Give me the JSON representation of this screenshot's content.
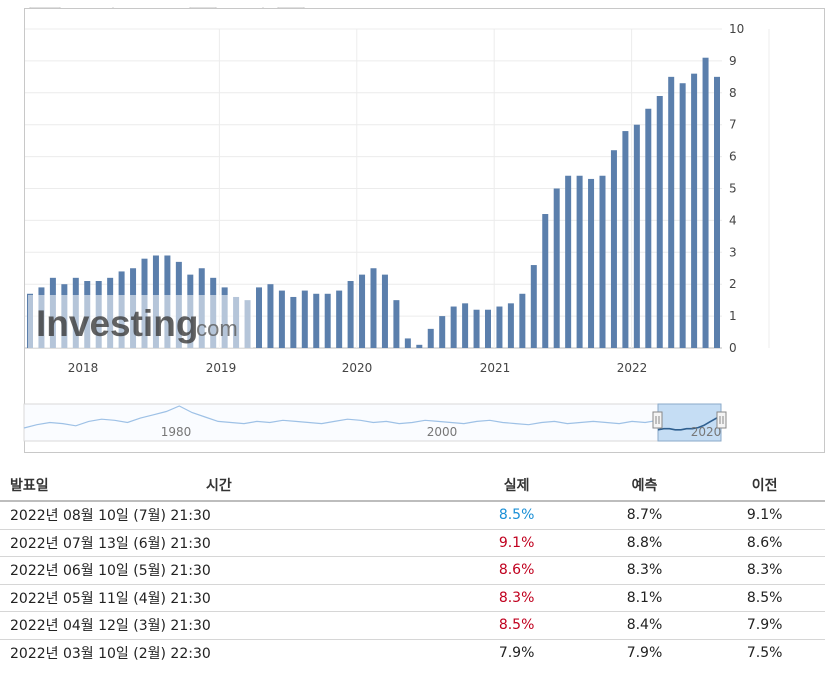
{
  "chart_data": {
    "type": "bar",
    "y_ticks": [
      "0",
      "1",
      "2",
      "3",
      "4",
      "5",
      "6",
      "7",
      "8",
      "9",
      "10"
    ],
    "ylim": [
      0,
      10
    ],
    "x_ticks": [
      {
        "label": "2018",
        "month": 12
      },
      {
        "label": "2019",
        "month": 24
      },
      {
        "label": "2020",
        "month": 36
      },
      {
        "label": "2021",
        "month": 48
      },
      {
        "label": "2022",
        "month": 60
      }
    ],
    "start_label": "2017-01",
    "values": [
      1.7,
      1.9,
      2.2,
      2.0,
      2.2,
      2.1,
      2.1,
      2.2,
      2.4,
      2.5,
      2.8,
      2.9,
      2.9,
      2.7,
      2.3,
      2.5,
      2.2,
      1.9,
      1.6,
      1.5,
      1.9,
      2.0,
      1.8,
      1.6,
      1.8,
      1.7,
      1.7,
      1.8,
      2.1,
      2.3,
      2.5,
      2.3,
      1.5,
      0.3,
      0.1,
      0.6,
      1.0,
      1.3,
      1.4,
      1.2,
      1.2,
      1.3,
      1.4,
      1.7,
      2.6,
      4.2,
      5.0,
      5.4,
      5.4,
      5.3,
      5.4,
      6.2,
      6.8,
      7.0,
      7.5,
      7.9,
      8.5,
      8.3,
      8.6,
      9.1,
      8.5
    ],
    "bar_color": "#5b7fac",
    "grid": true
  },
  "navigator": {
    "labels": [
      "1980",
      "2000",
      "2020"
    ],
    "line_color": "#9ec1e6",
    "selection_color": "#c5ddf4"
  },
  "watermark": {
    "brand": "Investing",
    "suffix": ".com"
  },
  "table": {
    "headers": {
      "date": "발표일",
      "time": "시간",
      "actual": "실제",
      "forecast": "예측",
      "previous": "이전"
    },
    "rows": [
      {
        "date": "2022년 08월 10일 (7월)",
        "time": "21:30",
        "actual": "8.5%",
        "forecast": "8.7%",
        "previous": "9.1%",
        "trend": "down"
      },
      {
        "date": "2022년 07월 13일 (6월)",
        "time": "21:30",
        "actual": "9.1%",
        "forecast": "8.8%",
        "previous": "8.6%",
        "trend": "up"
      },
      {
        "date": "2022년 06월 10일 (5월)",
        "time": "21:30",
        "actual": "8.6%",
        "forecast": "8.3%",
        "previous": "8.3%",
        "trend": "up"
      },
      {
        "date": "2022년 05월 11일 (4월)",
        "time": "21:30",
        "actual": "8.3%",
        "forecast": "8.1%",
        "previous": "8.5%",
        "trend": "up"
      },
      {
        "date": "2022년 04월 12일 (3월)",
        "time": "21:30",
        "actual": "8.5%",
        "forecast": "8.4%",
        "previous": "7.9%",
        "trend": "up"
      },
      {
        "date": "2022년 03월 10일 (2월)",
        "time": "22:30",
        "actual": "7.9%",
        "forecast": "7.9%",
        "previous": "7.5%",
        "trend": "flat"
      }
    ]
  }
}
